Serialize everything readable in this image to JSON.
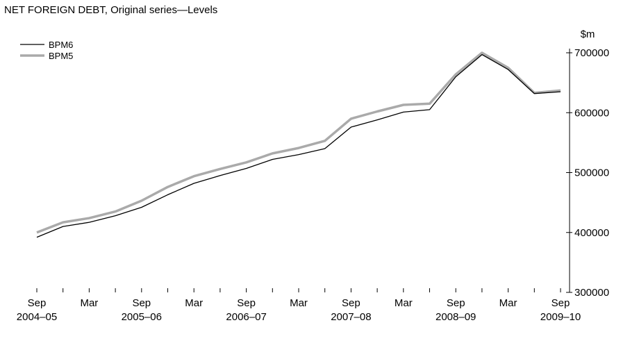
{
  "chart_data": {
    "type": "line",
    "title": "NET FOREIGN DEBT, Original series—Levels",
    "ylabel": "$m",
    "ylim": [
      300000,
      700000
    ],
    "yticks": [
      "300000",
      "400000",
      "500000",
      "600000",
      "700000"
    ],
    "x": [
      "Sep 2004",
      "Dec 2004",
      "Mar 2005",
      "Jun 2005",
      "Sep 2005",
      "Dec 2005",
      "Mar 2006",
      "Jun 2006",
      "Sep 2006",
      "Dec 2006",
      "Mar 2007",
      "Jun 2007",
      "Sep 2007",
      "Dec 2007",
      "Mar 2008",
      "Jun 2008",
      "Sep 2008",
      "Dec 2008",
      "Mar 2009",
      "Jun 2009",
      "Sep 2009"
    ],
    "xtick_months": [
      "Sep",
      "Mar",
      "Sep",
      "Mar",
      "Sep",
      "Mar",
      "Sep",
      "Mar",
      "Sep",
      "Mar",
      "Sep"
    ],
    "xtick_years": [
      "2004–05",
      "2005–06",
      "2006–07",
      "2007–08",
      "2008–09",
      "2009–10"
    ],
    "series": [
      {
        "name": "BPM6",
        "color": "#000000",
        "values": [
          392000,
          410000,
          417000,
          428000,
          442000,
          463000,
          482000,
          495000,
          507000,
          522000,
          530000,
          540000,
          576000,
          588000,
          601000,
          605000,
          660000,
          697000,
          672000,
          632000,
          635000
        ]
      },
      {
        "name": "BPM5",
        "color": "#aaaaaa",
        "values": [
          400000,
          417000,
          424000,
          435000,
          453000,
          476000,
          494000,
          506000,
          517000,
          532000,
          541000,
          553000,
          590000,
          602000,
          613000,
          615000,
          664000,
          700000,
          675000,
          633000,
          637000
        ]
      }
    ]
  }
}
